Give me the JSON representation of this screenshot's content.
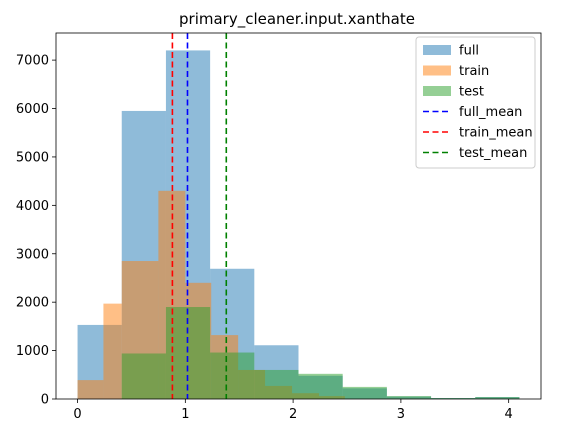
{
  "chart_data": {
    "type": "histogram",
    "title": "primary_cleaner.input.xanthate",
    "xlabel": "",
    "ylabel": "",
    "xlim": [
      -0.2,
      4.3
    ],
    "ylim": [
      0,
      7560
    ],
    "x_ticks": [
      0,
      1,
      2,
      3,
      4
    ],
    "y_ticks": [
      0,
      1000,
      2000,
      3000,
      4000,
      5000,
      6000,
      7000
    ],
    "grid": false,
    "legend_position": "top-right",
    "series": [
      {
        "name": "full",
        "color": "#1f77b4",
        "alpha": 0.5,
        "bins": [
          [
            0.0,
            0.41,
            1530
          ],
          [
            0.41,
            0.82,
            5950
          ],
          [
            0.82,
            1.23,
            7200
          ],
          [
            1.23,
            1.64,
            2690
          ],
          [
            1.64,
            2.05,
            1110
          ],
          [
            2.05,
            2.46,
            480
          ],
          [
            2.46,
            2.87,
            220
          ],
          [
            2.87,
            3.28,
            50
          ],
          [
            3.28,
            3.69,
            20
          ],
          [
            3.69,
            4.1,
            40
          ]
        ]
      },
      {
        "name": "train",
        "color": "#ff7f0e",
        "alpha": 0.5,
        "bins": [
          [
            0.0,
            0.24,
            390
          ],
          [
            0.24,
            0.41,
            1970
          ],
          [
            0.41,
            0.75,
            2850
          ],
          [
            0.75,
            1.0,
            4300
          ],
          [
            1.0,
            1.24,
            2400
          ],
          [
            1.24,
            1.49,
            1320
          ],
          [
            1.49,
            1.74,
            600
          ],
          [
            1.74,
            1.99,
            270
          ],
          [
            1.99,
            2.24,
            120
          ],
          [
            2.24,
            2.48,
            60
          ]
        ]
      },
      {
        "name": "test",
        "color": "#2ca02c",
        "alpha": 0.5,
        "bins": [
          [
            0.41,
            0.82,
            940
          ],
          [
            0.82,
            1.23,
            1900
          ],
          [
            1.23,
            1.64,
            960
          ],
          [
            1.64,
            2.05,
            600
          ],
          [
            2.05,
            2.46,
            520
          ],
          [
            2.46,
            2.87,
            250
          ],
          [
            2.87,
            3.28,
            60
          ],
          [
            3.28,
            3.69,
            20
          ],
          [
            3.69,
            4.1,
            40
          ]
        ]
      }
    ],
    "mean_lines": [
      {
        "name": "full_mean",
        "x": 1.02,
        "color": "#0000ff"
      },
      {
        "name": "train_mean",
        "x": 0.88,
        "color": "#ff0000"
      },
      {
        "name": "test_mean",
        "x": 1.38,
        "color": "#008000"
      }
    ]
  }
}
